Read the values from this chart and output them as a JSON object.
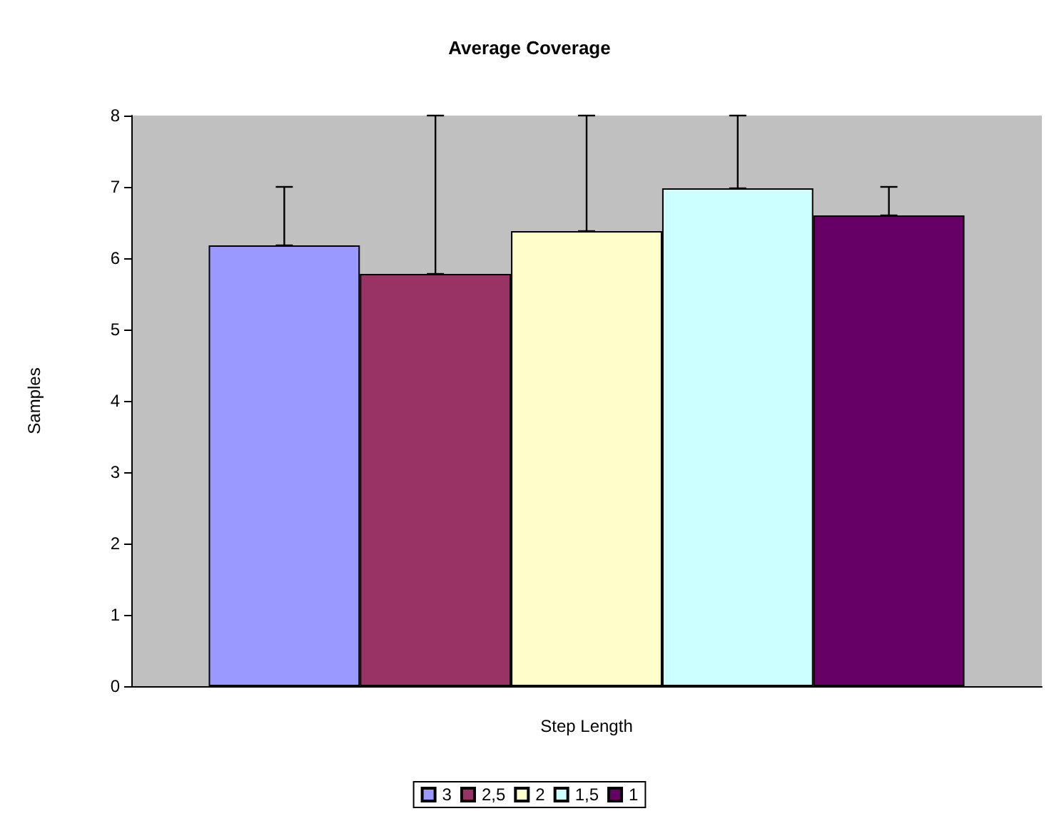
{
  "chart_data": {
    "type": "bar",
    "title": "Average Coverage",
    "xlabel": "Step Length",
    "ylabel": "Samples",
    "categories": [
      null
    ],
    "series": [
      {
        "name": "3",
        "color": "#9999ff",
        "values": [
          6.18
        ],
        "errors": [
          [
            6.18,
            7
          ]
        ]
      },
      {
        "name": "2,5",
        "color": "#993366",
        "values": [
          5.78
        ],
        "errors": [
          [
            5.78,
            8
          ]
        ]
      },
      {
        "name": "2",
        "color": "#ffffcc",
        "values": [
          6.38
        ],
        "errors": [
          [
            6.38,
            8
          ]
        ]
      },
      {
        "name": "1,5",
        "color": "#ccffff",
        "values": [
          6.98
        ],
        "errors": [
          [
            6.98,
            8
          ]
        ]
      },
      {
        "name": "1",
        "color": "#660066",
        "values": [
          6.6
        ],
        "errors": [
          [
            6.6,
            7
          ]
        ]
      }
    ],
    "ylim": [
      0,
      8
    ],
    "yticks": [
      0,
      1,
      2,
      3,
      4,
      5,
      6,
      7,
      8
    ],
    "grid": false,
    "legend": "bottom"
  }
}
